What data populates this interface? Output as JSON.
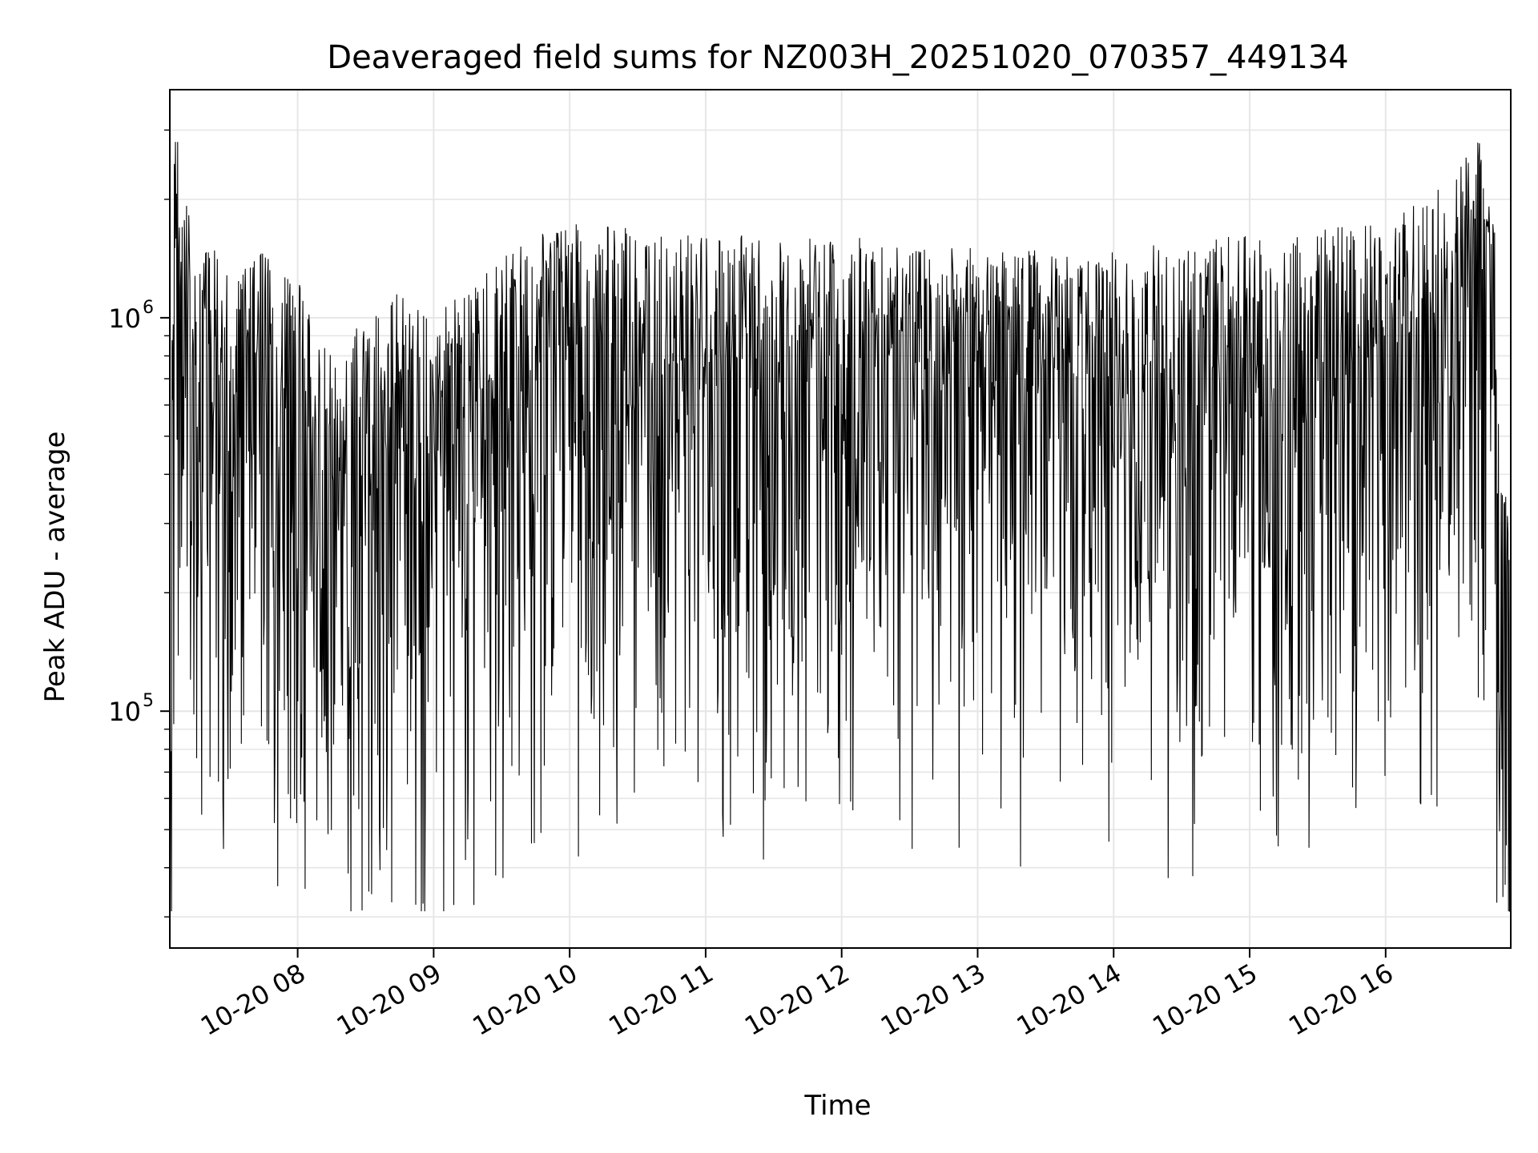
{
  "chart_data": {
    "type": "line",
    "title": "Deaveraged field sums for NZ003H_20251020_070357_449134",
    "xlabel": "Time",
    "ylabel": "Peak ADU - average",
    "yscale": "log",
    "ylim": [
      25000,
      3800000
    ],
    "xlim_hours": [
      7.06,
      16.92
    ],
    "grid": true,
    "line_color": "#000000",
    "grid_color": "#e6e6e6",
    "x_ticks": [
      {
        "hour": 8,
        "label": "10-20 08"
      },
      {
        "hour": 9,
        "label": "10-20 09"
      },
      {
        "hour": 10,
        "label": "10-20 10"
      },
      {
        "hour": 11,
        "label": "10-20 11"
      },
      {
        "hour": 12,
        "label": "10-20 12"
      },
      {
        "hour": 13,
        "label": "10-20 13"
      },
      {
        "hour": 14,
        "label": "10-20 14"
      },
      {
        "hour": 15,
        "label": "10-20 15"
      },
      {
        "hour": 16,
        "label": "10-20 16"
      }
    ],
    "y_ticks": [
      {
        "value": 100000,
        "base": "10",
        "exp": "5"
      },
      {
        "value": 1000000,
        "base": "10",
        "exp": "6"
      }
    ],
    "series": [
      {
        "name": "field sums",
        "profile": [
          {
            "hour": 7.06,
            "level": 150000
          },
          {
            "hour": 7.1,
            "level": 1500000
          },
          {
            "hour": 7.2,
            "level": 800000
          },
          {
            "hour": 7.5,
            "level": 500000
          },
          {
            "hour": 7.7,
            "level": 600000
          },
          {
            "hour": 8.0,
            "level": 500000
          },
          {
            "hour": 8.3,
            "level": 300000
          },
          {
            "hour": 8.6,
            "level": 500000
          },
          {
            "hour": 9.0,
            "level": 400000
          },
          {
            "hour": 9.5,
            "level": 600000
          },
          {
            "hour": 10.0,
            "level": 700000
          },
          {
            "hour": 11.0,
            "level": 650000
          },
          {
            "hour": 12.0,
            "level": 650000
          },
          {
            "hour": 13.0,
            "level": 600000
          },
          {
            "hour": 14.0,
            "level": 600000
          },
          {
            "hour": 15.0,
            "level": 650000
          },
          {
            "hour": 16.0,
            "level": 700000
          },
          {
            "hour": 16.5,
            "level": 900000
          },
          {
            "hour": 16.7,
            "level": 1200000
          },
          {
            "hour": 16.8,
            "level": 800000
          },
          {
            "hour": 16.85,
            "level": 200000
          },
          {
            "hour": 16.92,
            "level": 100000
          }
        ],
        "min": 31000,
        "max": 2800000,
        "points": 2400
      }
    ]
  }
}
